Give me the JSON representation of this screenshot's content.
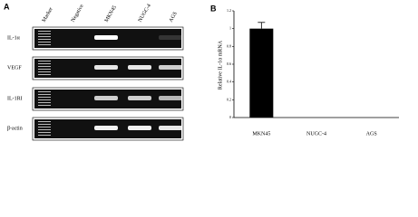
{
  "panel_a": {
    "label": "A",
    "lanes": [
      "Marker",
      "Negative",
      "MKN45",
      "NUGC-4",
      "AGS"
    ],
    "rows": [
      "IL-1α",
      "VEGF",
      "IL-1RI",
      "β-actin"
    ]
  },
  "chart_data": {
    "type": "bar",
    "label": "B",
    "y_label": "Relative IL-1α mRNA",
    "categories": [
      "MKN45",
      "NUGC-4",
      "AGS"
    ],
    "values": [
      1,
      0,
      0
    ],
    "errors": [
      0.07,
      null,
      null
    ],
    "color": "#000000",
    "ylim": [
      0,
      1.2
    ],
    "yticks": [
      0,
      0.2,
      0.4,
      0.6,
      0.8,
      1,
      1.2
    ]
  }
}
